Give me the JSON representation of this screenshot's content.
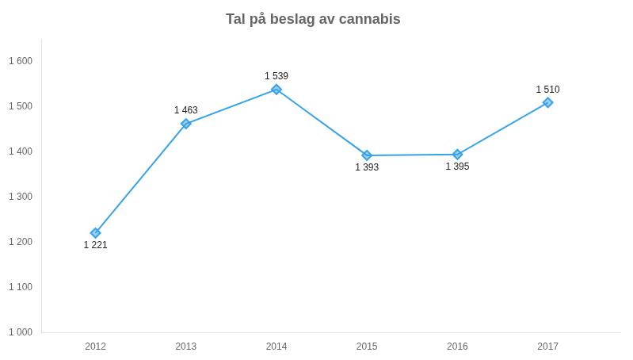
{
  "chart_data": {
    "type": "line",
    "title": "Tal på beslag av cannabis",
    "x": [
      2012,
      2013,
      2014,
      2015,
      2016,
      2017
    ],
    "values": [
      1221,
      1463,
      1539,
      1393,
      1395,
      1510
    ],
    "value_labels": [
      "1 221",
      "1 463",
      "1 539",
      "1 393",
      "1 395",
      "1 510"
    ],
    "data_labels": true,
    "marker": "diamond",
    "xlim": [
      2011.4,
      2017.8
    ],
    "xticks": [
      2012,
      2013,
      2014,
      2015,
      2016,
      2017
    ],
    "ylim": [
      1000,
      1650
    ],
    "yticks": [
      {
        "value": 1000,
        "label": "1 000"
      },
      {
        "value": 1100,
        "label": "1 100"
      },
      {
        "value": 1200,
        "label": "1 200"
      },
      {
        "value": 1300,
        "label": "1 300"
      },
      {
        "value": 1400,
        "label": "1 400"
      },
      {
        "value": 1500,
        "label": "1 500"
      },
      {
        "value": 1600,
        "label": "1 600"
      }
    ],
    "grid": false
  }
}
